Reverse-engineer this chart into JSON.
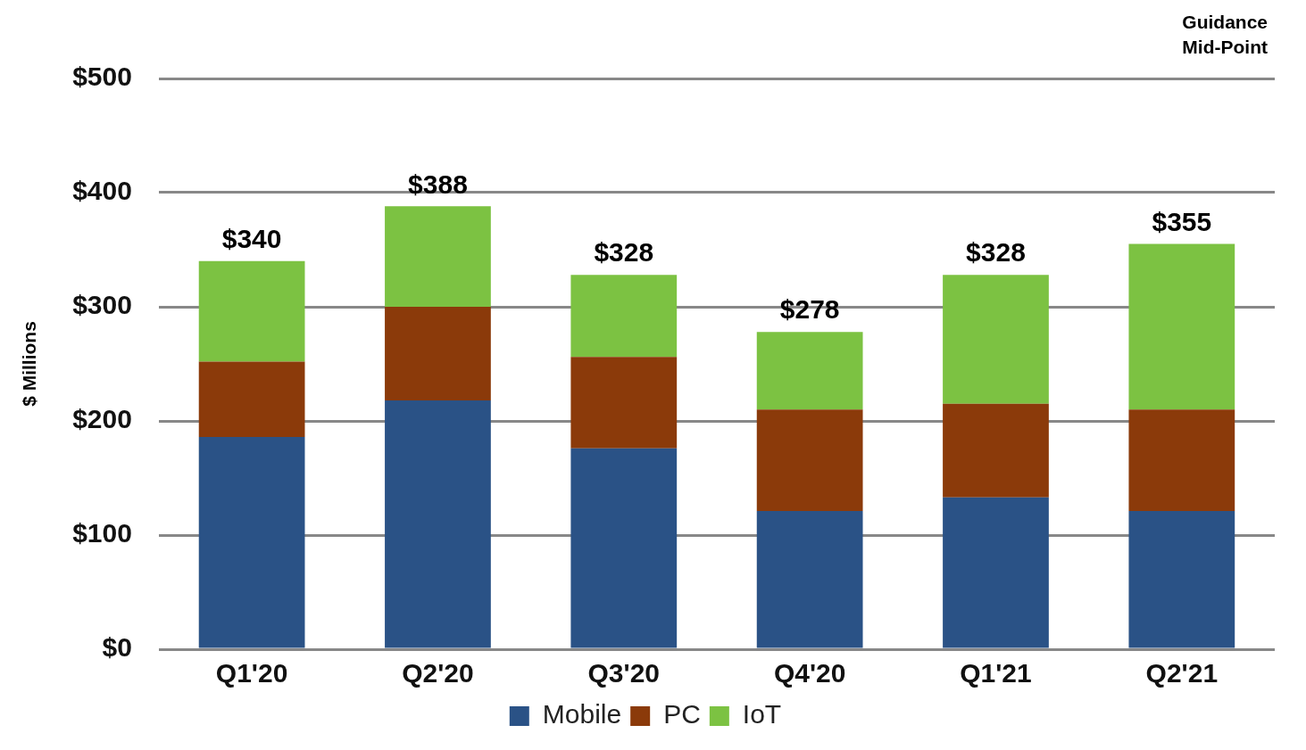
{
  "chart_data": {
    "type": "bar",
    "ylabel": "$ Millions",
    "categories": [
      "Q1'20",
      "Q2'20",
      "Q3'20",
      "Q4'20",
      "Q1'21",
      "Q2'21"
    ],
    "series": [
      {
        "name": "Mobile",
        "color": "#2a5286",
        "values": [
          186,
          218,
          176,
          121,
          133,
          121
        ]
      },
      {
        "name": "PC",
        "color": "#8b3a0a",
        "values": [
          66,
          82,
          80,
          89,
          82,
          89
        ]
      },
      {
        "name": "IoT",
        "color": "#7cc242",
        "values": [
          88,
          88,
          72,
          68,
          113,
          145
        ]
      }
    ],
    "stacked": true,
    "ylim": [
      0,
      500
    ],
    "yticks": [
      {
        "value": 0,
        "label": "$0"
      },
      {
        "value": 100,
        "label": "$100"
      },
      {
        "value": 200,
        "label": "$200"
      },
      {
        "value": 300,
        "label": "$300"
      },
      {
        "value": 400,
        "label": "$400"
      },
      {
        "value": 500,
        "label": "$500"
      }
    ],
    "totals": [
      "$340",
      "$388",
      "$328",
      "$278",
      "$328",
      "$355"
    ],
    "annotations": [
      "Guidance\nMid-Point"
    ],
    "grid": "y",
    "legend": "bottom"
  }
}
